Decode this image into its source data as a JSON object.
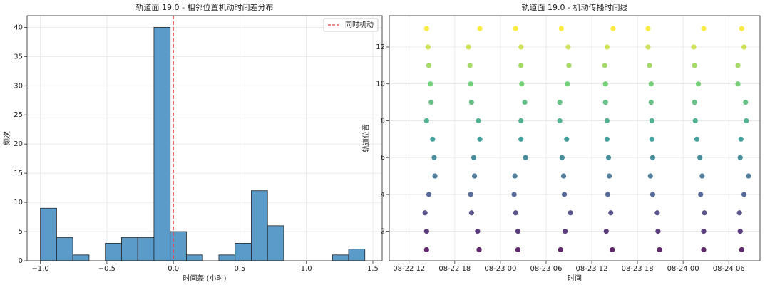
{
  "chart_data": [
    {
      "type": "histogram",
      "title": "轨道面 19.0 - 相邻位置机动时间差分布",
      "x_label": "时间差 (小时)",
      "y_label": "频次",
      "bins": [
        -1.0,
        -0.878,
        -0.756,
        -0.634,
        -0.512,
        -0.39,
        -0.268,
        -0.146,
        -0.024,
        0.098,
        0.22,
        0.342,
        0.464,
        0.586,
        0.708,
        0.83,
        0.952,
        1.074,
        1.196,
        1.318,
        1.44
      ],
      "values": [
        9,
        4,
        1,
        0,
        3,
        4,
        4,
        40,
        5,
        1,
        0,
        1,
        3,
        12,
        6,
        0,
        0,
        0,
        1,
        2
      ],
      "color": "#5b9bc9",
      "edge_color": "#222",
      "xlim": [
        -1.1,
        1.57
      ],
      "ylim": [
        0,
        42
      ],
      "xticks": [
        {
          "value": -1.0,
          "label": "−1.0"
        },
        {
          "value": -0.5,
          "label": "−0.5"
        },
        {
          "value": 0,
          "label": "0.0"
        },
        {
          "value": 0.5,
          "label": "0.5"
        },
        {
          "value": 1,
          "label": "1.0"
        },
        {
          "value": 1.5,
          "label": "1.5"
        }
      ],
      "yticks": [
        0,
        5,
        10,
        15,
        20,
        25,
        30,
        35,
        40
      ],
      "vline": {
        "value": 0,
        "name": "同时机动",
        "color": "#e8413c"
      },
      "legend": "upper right",
      "grid": true
    },
    {
      "type": "scatter",
      "title": "轨道面 19.0 - 机动传播时间线",
      "x_label": "时间",
      "y_label": "轨道位置",
      "colormap": "viridis",
      "x": [
        14.3,
        21.3,
        26.0,
        32.0,
        38.8,
        43.4,
        50.7,
        55.7,
        14.5,
        19.8,
        26.7,
        32.9,
        38.0,
        43.4,
        49.4,
        56.0,
        14.6,
        20.0,
        26.7,
        33.0,
        37.7,
        43.6,
        49.5,
        55.2,
        14.8,
        20.1,
        26.8,
        32.8,
        37.8,
        43.8,
        50.0,
        55.2,
        14.9,
        20.2,
        27.2,
        31.8,
        37.8,
        43.8,
        49.5,
        56.2,
        14.3,
        21.1,
        26.7,
        31.8,
        38.0,
        43.9,
        49.6,
        56.3,
        15.1,
        21.3,
        26.7,
        32.7,
        38.0,
        43.9,
        49.8,
        55.6,
        15.3,
        20.5,
        27.3,
        32.1,
        38.2,
        44.0,
        50.2,
        55.5,
        15.4,
        20.6,
        25.9,
        32.3,
        38.3,
        43.7,
        50.5,
        56.6,
        14.6,
        20.1,
        25.8,
        32.4,
        38.1,
        44.0,
        50.3,
        56.0,
        14.1,
        20.2,
        26.0,
        33.2,
        38.5,
        44.6,
        50.8,
        55.4,
        14.3,
        21.0,
        26.3,
        32.5,
        37.9,
        44.7,
        50.7,
        55.5,
        14.3,
        21.2,
        26.3,
        31.9,
        38.7,
        44.9,
        50.7,
        55.7
      ],
      "y": [
        13,
        13,
        13,
        13,
        13,
        13,
        13,
        13,
        12,
        12,
        12,
        12,
        12,
        12,
        12,
        12,
        11,
        11,
        11,
        11,
        11,
        11,
        11,
        11,
        10,
        10,
        10,
        10,
        10,
        10,
        10,
        10,
        9,
        9,
        9,
        9,
        9,
        9,
        9,
        9,
        8,
        8,
        8,
        8,
        8,
        8,
        8,
        8,
        7,
        7,
        7,
        7,
        7,
        7,
        7,
        7,
        6,
        6,
        6,
        6,
        6,
        6,
        6,
        6,
        5,
        5,
        5,
        5,
        5,
        5,
        5,
        5,
        4,
        4,
        4,
        4,
        4,
        4,
        4,
        4,
        3,
        3,
        3,
        3,
        3,
        3,
        3,
        3,
        2,
        2,
        2,
        2,
        2,
        2,
        2,
        2,
        1,
        1,
        1,
        1,
        1,
        1,
        1,
        1
      ],
      "xlim": [
        9.4,
        58.1
      ],
      "ylim": [
        0.4,
        13.7
      ],
      "xticks": [
        {
          "value": 12,
          "label": "08-22 12"
        },
        {
          "value": 18,
          "label": "08-22 18"
        },
        {
          "value": 24,
          "label": "08-23 00"
        },
        {
          "value": 30,
          "label": "08-23 06"
        },
        {
          "value": 36,
          "label": "08-23 12"
        },
        {
          "value": 42,
          "label": "08-23 18"
        },
        {
          "value": 48,
          "label": "08-24 00"
        },
        {
          "value": 54,
          "label": "08-24 06"
        }
      ],
      "yticks": [
        2,
        4,
        6,
        8,
        10,
        12
      ],
      "grid": true
    }
  ]
}
